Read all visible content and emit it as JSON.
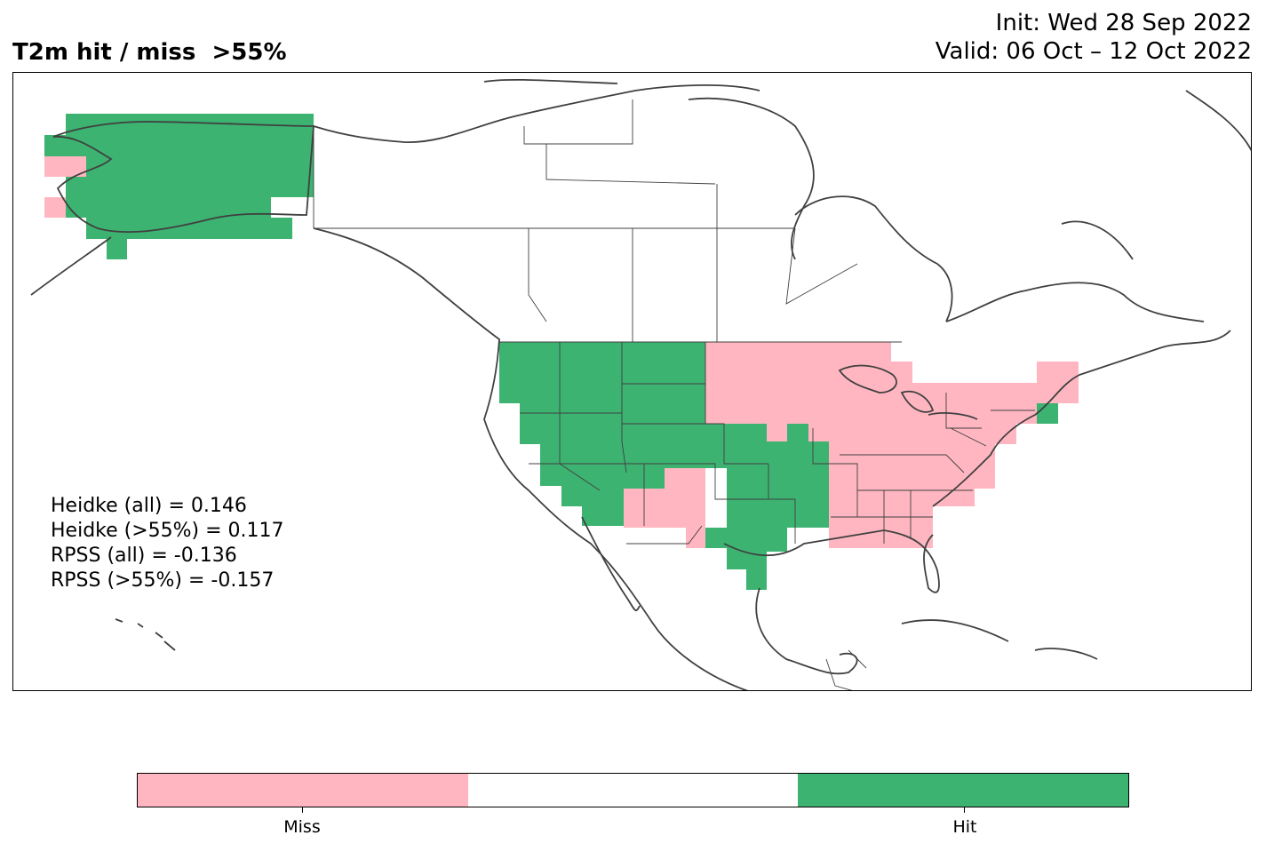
{
  "header": {
    "title": "T2m hit / miss  >55%",
    "init": "Init: Wed 28 Sep 2022",
    "valid": "Valid: 06 Oct – 12 Oct 2022"
  },
  "scores": [
    "Heidke (all) = 0.146",
    "Heidke (>55%) = 0.117",
    "RPSS (all) = -0.136",
    "RPSS (>55%) = -0.157"
  ],
  "legend": {
    "segments": [
      {
        "label": "Miss",
        "color": "#ffb6c1"
      },
      {
        "label": "",
        "color": "#ffffff"
      },
      {
        "label": "Hit",
        "color": "#3cb371"
      }
    ]
  },
  "colors": {
    "miss": "#ffb6c1",
    "hit": "#3cb371",
    "coast": "#404040"
  }
}
